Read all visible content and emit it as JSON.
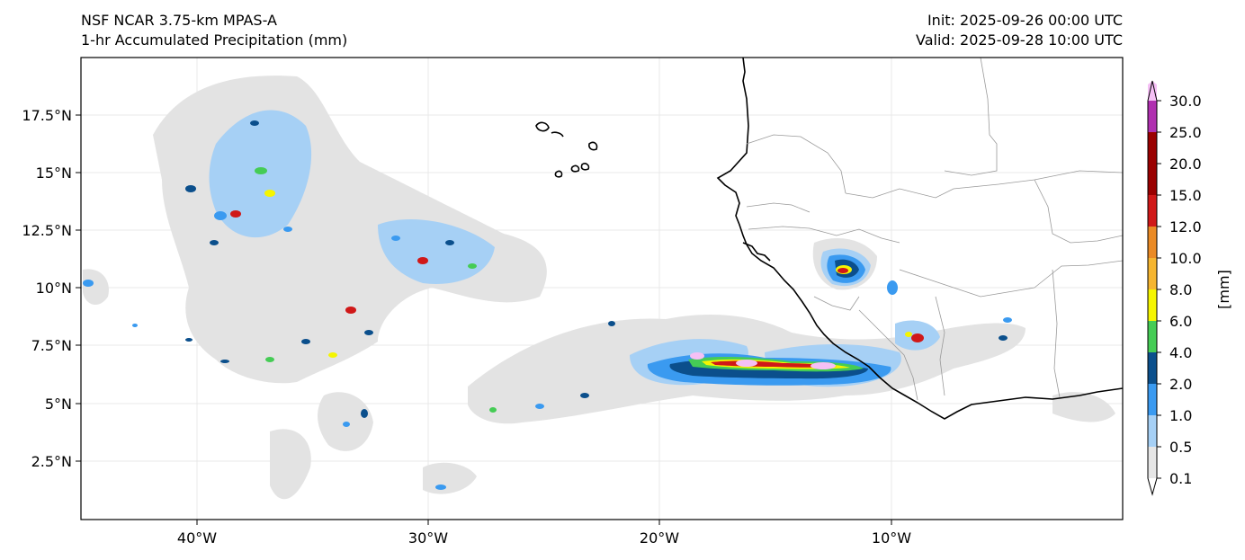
{
  "header": {
    "model": "NSF NCAR 3.75-km MPAS-A",
    "field": "1-hr Accumulated Precipitation (mm)",
    "init": "Init: 2025-09-26 00:00 UTC",
    "valid": "Valid: 2025-09-28 10:00 UTC"
  },
  "axes": {
    "lat_ticks": [
      "17.5°N",
      "15°N",
      "12.5°N",
      "10°N",
      "7.5°N",
      "5°N",
      "2.5°N"
    ],
    "lon_ticks": [
      "40°W",
      "30°W",
      "20°W",
      "10°W"
    ]
  },
  "colorbar": {
    "label": "[mm]",
    "levels": [
      "0.1",
      "0.5",
      "1.0",
      "2.0",
      "4.0",
      "6.0",
      "8.0",
      "10.0",
      "12.0",
      "15.0",
      "20.0",
      "25.0",
      "30.0"
    ],
    "colors": [
      "#e6e6e6",
      "#a6d0f5",
      "#3a9af0",
      "#0b4f8c",
      "#45cc55",
      "#f5f500",
      "#f5b530",
      "#ea8a25",
      "#d01818",
      "#9a0000",
      "#b030b0",
      "#f5c0f5"
    ]
  },
  "map_colors": {
    "light": "#e3e3e3",
    "pale_blue": "#a6d0f5",
    "blue": "#3a9af0",
    "dark_blue": "#0b4f8c",
    "green": "#45cc55",
    "yellow": "#f5f500",
    "red": "#d01818",
    "pink": "#f5c0f5",
    "coast": "#000000",
    "border": "#9a9a9a"
  }
}
